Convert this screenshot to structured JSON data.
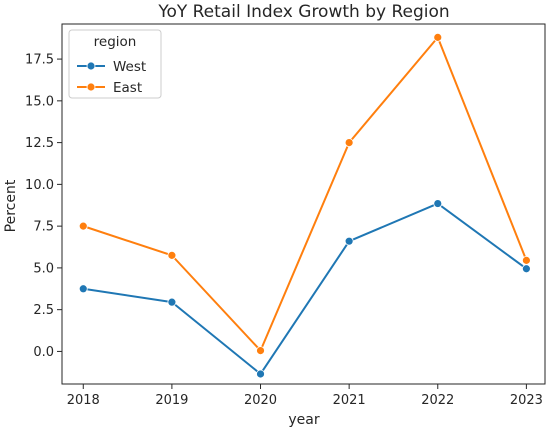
{
  "chart_data": {
    "type": "line",
    "title": "YoY Retail Index Growth by Region",
    "xlabel": "year",
    "ylabel": "Percent",
    "x": [
      2018,
      2019,
      2020,
      2021,
      2022,
      2023
    ],
    "xlim": [
      2017.76,
      2023.21
    ],
    "ylim": [
      -1.95,
      19.6
    ],
    "yticks": [
      0.0,
      2.5,
      5.0,
      7.5,
      10.0,
      12.5,
      15.0,
      17.5
    ],
    "ytick_labels": [
      "0.0",
      "2.5",
      "5.0",
      "7.5",
      "10.0",
      "12.5",
      "15.0",
      "17.5"
    ],
    "xtick_labels": [
      "2018",
      "2019",
      "2020",
      "2021",
      "2022",
      "2023"
    ],
    "grid": false,
    "legend": {
      "title": "region",
      "position": "top-left",
      "entries": [
        "West",
        "East"
      ]
    },
    "series": [
      {
        "name": "West",
        "color": "#1f77b4",
        "values": [
          3.75,
          2.95,
          -1.35,
          6.6,
          8.85,
          4.95
        ]
      },
      {
        "name": "East",
        "color": "#ff7f0e",
        "values": [
          7.5,
          5.75,
          0.05,
          12.5,
          18.8,
          5.45
        ]
      }
    ]
  }
}
